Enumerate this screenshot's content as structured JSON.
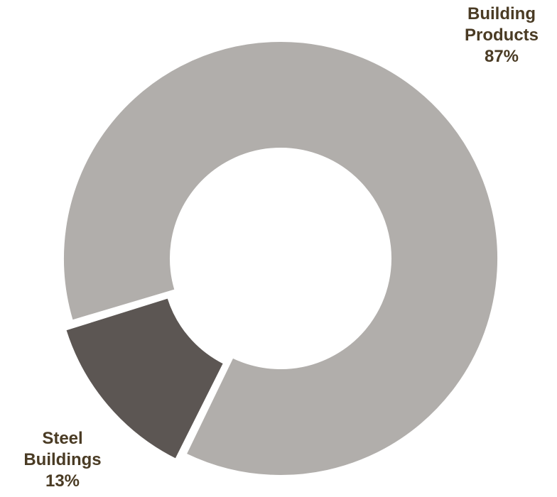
{
  "chart_data": {
    "type": "pie",
    "donut": true,
    "title": "",
    "slices": [
      {
        "label_lines": [
          "Building",
          "Products"
        ],
        "label": "Building Products",
        "value": 87,
        "value_label": "87%",
        "color": "#b1aeab"
      },
      {
        "label_lines": [
          "Steel",
          "Buildings"
        ],
        "label": "Steel Buildings",
        "value": 13,
        "value_label": "13%",
        "color": "#5c5653",
        "exploded": true
      }
    ],
    "legend": "none"
  }
}
